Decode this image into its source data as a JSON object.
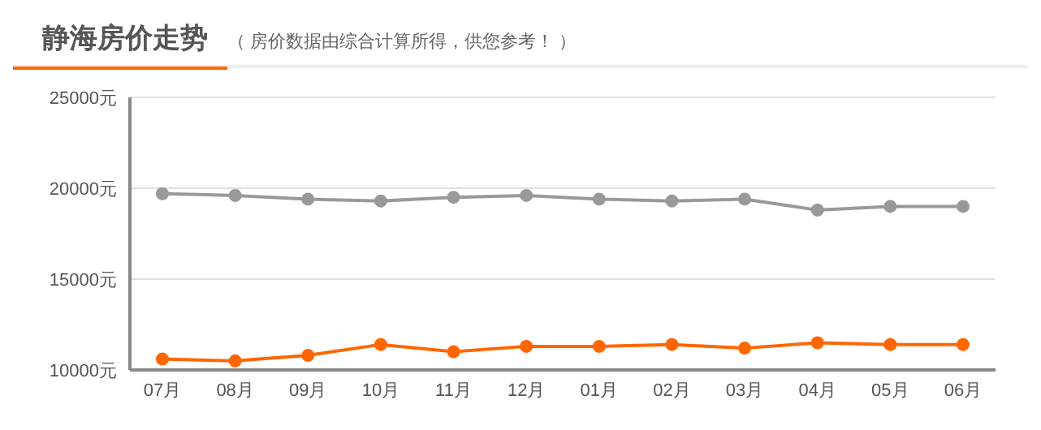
{
  "chart_data": {
    "type": "line",
    "title": "静海房价走势",
    "subtitle": "（ 房价数据由综合计算所得，供您参考！ ）",
    "categories": [
      "07月",
      "08月",
      "09月",
      "10月",
      "11月",
      "12月",
      "01月",
      "02月",
      "03月",
      "04月",
      "05月",
      "06月"
    ],
    "series": [
      {
        "color": "#999999",
        "values": [
          19700,
          19600,
          19400,
          19300,
          19500,
          19600,
          19400,
          19300,
          19400,
          18800,
          19000,
          19000
        ]
      },
      {
        "color": "#ff6600",
        "values": [
          10600,
          10500,
          10800,
          11400,
          11000,
          11300,
          11300,
          11400,
          11200,
          11500,
          11400,
          11400
        ]
      }
    ],
    "ylim": [
      10000,
      25000
    ],
    "yticks": [
      {
        "value": 10000,
        "label": "10000元"
      },
      {
        "value": 15000,
        "label": "15000元"
      },
      {
        "value": 20000,
        "label": "20000元"
      },
      {
        "value": 25000,
        "label": "25000元"
      }
    ],
    "grid": "y",
    "marker": "circle",
    "line_style": "solid"
  }
}
